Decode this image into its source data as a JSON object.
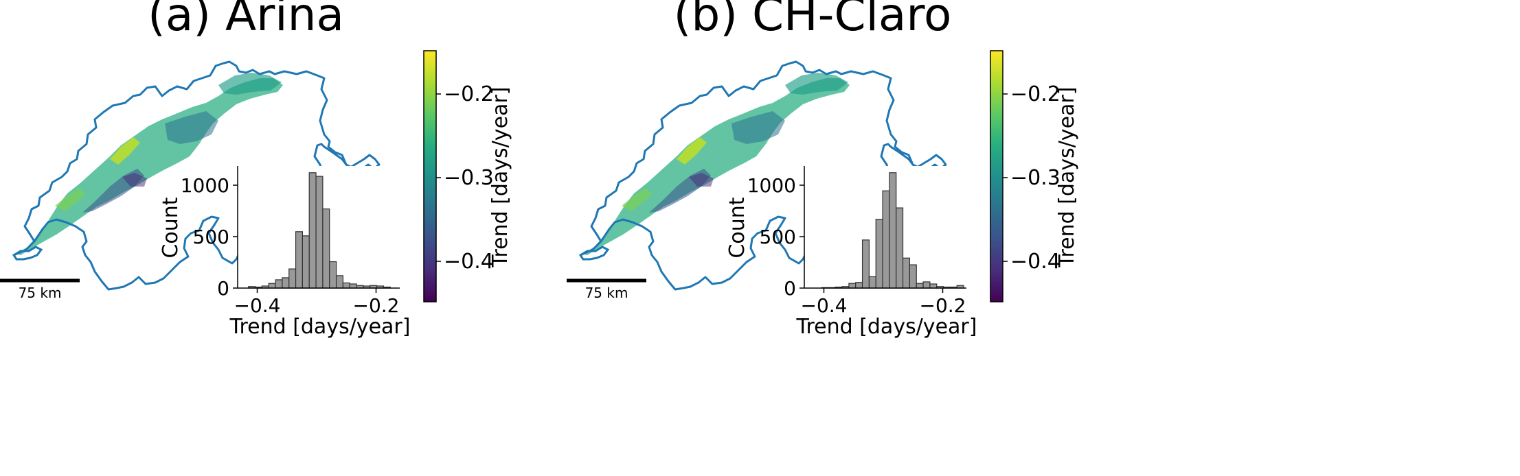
{
  "figure": {
    "panels": [
      {
        "title": "(a) Arina",
        "scale_bar_label": "75 km",
        "colorbar": {
          "label": "Trend [days/year]",
          "range": [
            -0.45,
            -0.15
          ],
          "ticks": [
            -0.2,
            -0.3,
            -0.4
          ],
          "tick_labels": [
            "−0.2",
            "−0.3",
            "−0.4"
          ],
          "colormap": "viridis"
        },
        "inset": {
          "xlabel": "Trend [days/year]",
          "ylabel": "Count",
          "xticks": [
            "−0.4",
            "−0.2"
          ],
          "yticks": [
            "0",
            "500",
            "1000"
          ]
        }
      },
      {
        "title": "(b) CH-Claro",
        "scale_bar_label": "75 km",
        "colorbar": {
          "label": "Trend [days/year]",
          "range": [
            -0.45,
            -0.15
          ],
          "ticks": [
            -0.2,
            -0.3,
            -0.4
          ],
          "tick_labels": [
            "−0.2",
            "−0.3",
            "−0.4"
          ],
          "colormap": "viridis"
        },
        "inset": {
          "xlabel": "Trend [days/year]",
          "ylabel": "Count",
          "xticks": [
            "−0.4",
            "−0.2"
          ],
          "yticks": [
            "0",
            "500",
            "1000"
          ]
        }
      }
    ],
    "colors": {
      "border": "#1f77b4",
      "bar_fill": "#999999",
      "bar_edge": "#333333",
      "scale_bar": "#000000"
    }
  },
  "chart_data": [
    {
      "type": "bar",
      "title": "(a) Arina",
      "xlabel": "Trend [days/year]",
      "ylabel": "Count",
      "xlim": [
        -0.445,
        -0.145
      ],
      "ylim": [
        0,
        1180
      ],
      "bin_width": 0.0125,
      "bin_starts": [
        -0.425,
        -0.4125,
        -0.4,
        -0.3875,
        -0.375,
        -0.3625,
        -0.35,
        -0.3375,
        -0.325,
        -0.3125,
        -0.3,
        -0.2875,
        -0.275,
        -0.2625,
        -0.25,
        -0.2375,
        -0.225,
        -0.2125,
        -0.2,
        -0.1875,
        -0.175
      ],
      "values": [
        15,
        10,
        20,
        45,
        80,
        100,
        185,
        545,
        505,
        1115,
        1080,
        765,
        255,
        120,
        50,
        40,
        25,
        20,
        25,
        20,
        10
      ]
    },
    {
      "type": "bar",
      "title": "(b) CH-Claro",
      "xlabel": "Trend [days/year]",
      "ylabel": "Count",
      "xlim": [
        -0.445,
        -0.145
      ],
      "ylim": [
        0,
        1180
      ],
      "bin_width": 0.0125,
      "bin_starts": [
        -0.4125,
        -0.4,
        -0.3875,
        -0.375,
        -0.3625,
        -0.35,
        -0.3375,
        -0.325,
        -0.3125,
        -0.3,
        -0.2875,
        -0.275,
        -0.2625,
        -0.25,
        -0.2375,
        -0.225,
        -0.2125,
        -0.2,
        -0.1875,
        -0.175,
        -0.1625
      ],
      "values": [
        5,
        5,
        10,
        15,
        45,
        55,
        465,
        110,
        665,
        940,
        1115,
        775,
        290,
        225,
        45,
        60,
        40,
        15,
        10,
        10,
        25
      ]
    }
  ]
}
